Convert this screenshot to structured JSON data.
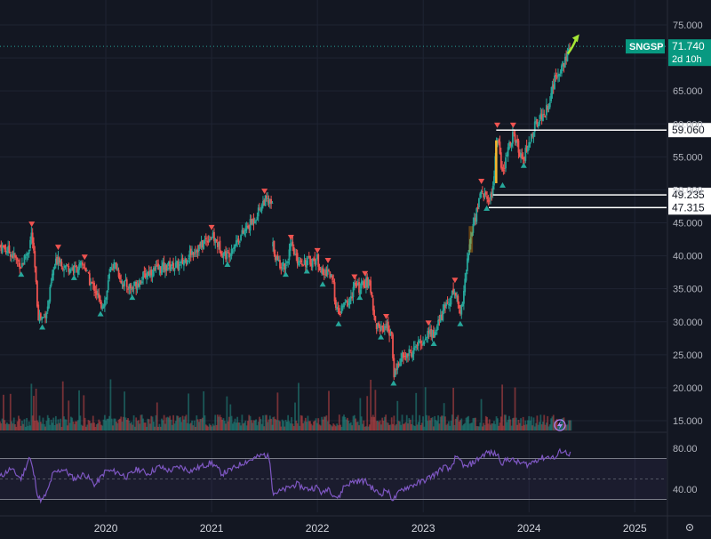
{
  "chart_data": [
    {
      "type": "candlestick",
      "symbol": "SNGSP",
      "last_price": "71.740",
      "countdown": "2d 10h",
      "y_ticks": [
        "75.000",
        "70.000",
        "65.000",
        "60.000",
        "55.000",
        "50.000",
        "45.000",
        "40.000",
        "35.000",
        "30.000",
        "25.000",
        "20.000",
        "15.000"
      ],
      "ylim": [
        15,
        75
      ],
      "x_ticks": [
        "2020",
        "2021",
        "2022",
        "2023",
        "2024",
        "2025"
      ],
      "xlim": [
        2019.0,
        2025.3
      ],
      "price_levels": [
        "59.060",
        "49.235",
        "47.315"
      ],
      "series": [
        {
          "name": "",
          "points": [
            [
              2019.0,
              41.5
            ],
            [
              2019.1,
              40.5
            ],
            [
              2019.2,
              38.5
            ],
            [
              2019.27,
              41.0
            ],
            [
              2019.3,
              43.5
            ],
            [
              2019.33,
              38.0
            ],
            [
              2019.36,
              31.0
            ],
            [
              2019.4,
              30.5
            ],
            [
              2019.45,
              32.0
            ],
            [
              2019.5,
              37.5
            ],
            [
              2019.55,
              40.0
            ],
            [
              2019.6,
              38.5
            ],
            [
              2019.7,
              38.0
            ],
            [
              2019.8,
              38.5
            ],
            [
              2019.85,
              36.0
            ],
            [
              2019.9,
              35.0
            ],
            [
              2019.95,
              32.5
            ],
            [
              2020.0,
              33.5
            ],
            [
              2020.05,
              38.5
            ],
            [
              2020.1,
              38.5
            ],
            [
              2020.15,
              36.0
            ],
            [
              2020.2,
              35.5
            ],
            [
              2020.25,
              35.0
            ],
            [
              2020.3,
              36.0
            ],
            [
              2020.4,
              37.5
            ],
            [
              2020.5,
              38.0
            ],
            [
              2020.6,
              38.5
            ],
            [
              2020.7,
              38.5
            ],
            [
              2020.8,
              40.5
            ],
            [
              2020.9,
              41.5
            ],
            [
              2020.95,
              42.5
            ],
            [
              2021.0,
              43.0
            ],
            [
              2021.05,
              42.0
            ],
            [
              2021.1,
              40.5
            ],
            [
              2021.15,
              40.0
            ],
            [
              2021.2,
              41.5
            ],
            [
              2021.3,
              43.5
            ],
            [
              2021.4,
              45.5
            ],
            [
              2021.45,
              47.0
            ],
            [
              2021.5,
              48.5
            ],
            [
              2021.55,
              48.0
            ],
            [
              2021.58,
              47.5
            ]
          ]
        },
        {
          "name": "",
          "points": [
            [
              2021.58,
              41.5
            ],
            [
              2021.62,
              39.0
            ],
            [
              2021.7,
              38.5
            ],
            [
              2021.75,
              41.5
            ],
            [
              2021.8,
              39.5
            ],
            [
              2021.9,
              39.0
            ],
            [
              2022.0,
              39.5
            ],
            [
              2022.05,
              37.0
            ],
            [
              2022.1,
              38.0
            ],
            [
              2022.15,
              35.5
            ],
            [
              2022.17,
              33.0
            ],
            [
              2022.2,
              31.0
            ],
            [
              2022.25,
              32.5
            ],
            [
              2022.3,
              33.0
            ],
            [
              2022.35,
              35.5
            ],
            [
              2022.4,
              35.0
            ],
            [
              2022.45,
              36.0
            ],
            [
              2022.5,
              35.5
            ],
            [
              2022.55,
              29.5
            ],
            [
              2022.6,
              29.0
            ],
            [
              2022.65,
              29.5
            ],
            [
              2022.7,
              28.0
            ],
            [
              2022.72,
              22.0
            ],
            [
              2022.76,
              23.5
            ],
            [
              2022.8,
              24.5
            ],
            [
              2022.85,
              25.0
            ],
            [
              2022.9,
              25.5
            ],
            [
              2022.95,
              26.5
            ],
            [
              2023.0,
              27.0
            ],
            [
              2023.05,
              28.5
            ],
            [
              2023.1,
              28.0
            ],
            [
              2023.2,
              32.0
            ],
            [
              2023.3,
              35.0
            ],
            [
              2023.35,
              31.0
            ],
            [
              2023.4,
              37.0
            ],
            [
              2023.45,
              43.0
            ],
            [
              2023.5,
              46.5
            ],
            [
              2023.55,
              50.0
            ],
            [
              2023.6,
              48.5
            ],
            [
              2023.65,
              49.0
            ],
            [
              2023.7,
              58.5
            ],
            [
              2023.75,
              52.0
            ],
            [
              2023.8,
              56.0
            ],
            [
              2023.85,
              58.5
            ],
            [
              2023.9,
              56.0
            ],
            [
              2023.95,
              55.0
            ],
            [
              2024.0,
              57.0
            ],
            [
              2024.05,
              59.5
            ],
            [
              2024.1,
              61.0
            ],
            [
              2024.15,
              61.5
            ],
            [
              2024.2,
              64.0
            ],
            [
              2024.25,
              67.0
            ],
            [
              2024.3,
              68.5
            ],
            [
              2024.35,
              70.0
            ],
            [
              2024.4,
              71.7
            ]
          ]
        }
      ]
    },
    {
      "type": "line",
      "y_ticks": [
        "80.00",
        "40.00"
      ],
      "ylim": [
        30,
        90
      ],
      "bands": [
        70,
        30
      ],
      "series": [
        {
          "name": "",
          "points": [
            [
              2019.0,
              52
            ],
            [
              2019.1,
              60
            ],
            [
              2019.2,
              50
            ],
            [
              2019.28,
              72
            ],
            [
              2019.33,
              50
            ],
            [
              2019.36,
              32
            ],
            [
              2019.4,
              29
            ],
            [
              2019.45,
              38
            ],
            [
              2019.5,
              55
            ],
            [
              2019.6,
              60
            ],
            [
              2019.7,
              50
            ],
            [
              2019.8,
              55
            ],
            [
              2019.9,
              44
            ],
            [
              2020.0,
              58
            ],
            [
              2020.1,
              57
            ],
            [
              2020.2,
              52
            ],
            [
              2020.3,
              60
            ],
            [
              2020.4,
              55
            ],
            [
              2020.5,
              62
            ],
            [
              2020.6,
              58
            ],
            [
              2020.7,
              62
            ],
            [
              2020.8,
              58
            ],
            [
              2020.9,
              62
            ],
            [
              2021.0,
              66
            ],
            [
              2021.1,
              55
            ],
            [
              2021.2,
              60
            ],
            [
              2021.3,
              66
            ],
            [
              2021.4,
              70
            ],
            [
              2021.5,
              74
            ],
            [
              2021.55,
              70
            ],
            [
              2021.58,
              36
            ],
            [
              2021.65,
              38
            ],
            [
              2021.7,
              40
            ],
            [
              2021.8,
              45
            ],
            [
              2021.9,
              40
            ],
            [
              2022.0,
              42
            ],
            [
              2022.05,
              35
            ],
            [
              2022.1,
              42
            ],
            [
              2022.15,
              35
            ],
            [
              2022.2,
              31
            ],
            [
              2022.25,
              43
            ],
            [
              2022.35,
              48
            ],
            [
              2022.45,
              48
            ],
            [
              2022.55,
              38
            ],
            [
              2022.6,
              35
            ],
            [
              2022.65,
              40
            ],
            [
              2022.7,
              32
            ],
            [
              2022.72,
              30
            ],
            [
              2022.8,
              40
            ],
            [
              2022.9,
              44
            ],
            [
              2023.0,
              48
            ],
            [
              2023.1,
              54
            ],
            [
              2023.2,
              62
            ],
            [
              2023.25,
              58
            ],
            [
              2023.3,
              70
            ],
            [
              2023.35,
              68
            ],
            [
              2023.4,
              61
            ],
            [
              2023.5,
              68
            ],
            [
              2023.6,
              76
            ],
            [
              2023.7,
              74
            ],
            [
              2023.75,
              65
            ],
            [
              2023.8,
              70
            ],
            [
              2023.9,
              66
            ],
            [
              2024.0,
              64
            ],
            [
              2024.05,
              68
            ],
            [
              2024.1,
              70
            ],
            [
              2024.2,
              72
            ],
            [
              2024.25,
              70
            ],
            [
              2024.3,
              78
            ],
            [
              2024.4,
              74
            ]
          ]
        }
      ]
    }
  ],
  "colors": {
    "background": "#131722",
    "up": "#26a69a",
    "down": "#ef5350",
    "indicator_line": "#7e57c2",
    "symbol_tag": "#089981",
    "arrow": "#a5e635",
    "marker": "#f7b62d",
    "range_box": "#ff9800"
  },
  "icons": {
    "lightning": "lightning-icon",
    "settings": "gear-icon"
  }
}
